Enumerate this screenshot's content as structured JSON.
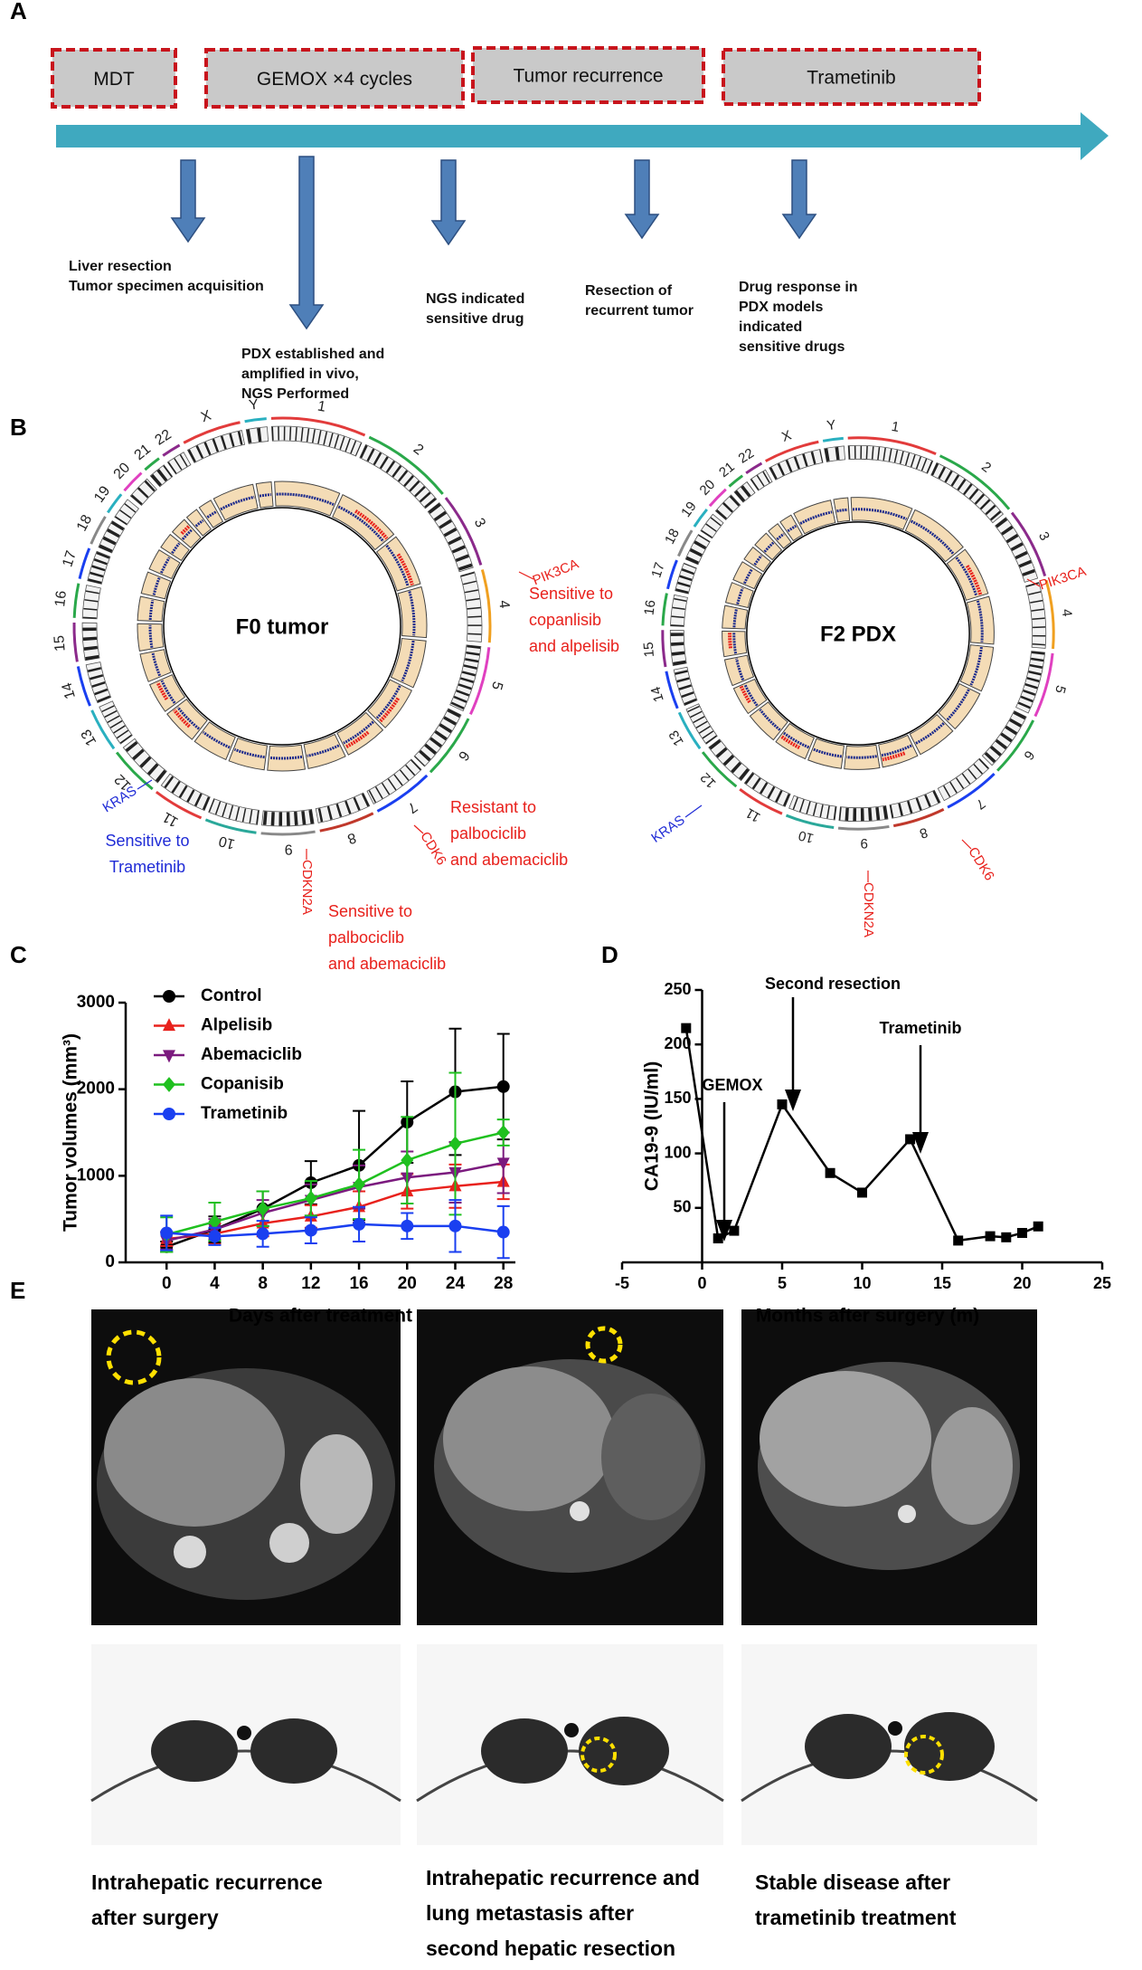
{
  "panel_labels": [
    "A",
    "B",
    "C",
    "D",
    "E"
  ],
  "timeline": {
    "phases": [
      "MDT",
      "GEMOX ×4 cycles",
      "Tumor recurrence",
      "Trametinib"
    ],
    "events": [
      [
        "Liver resection",
        "Tumor specimen acquisition"
      ],
      [
        "PDX established and",
        "amplified in vivo,",
        "NGS Performed"
      ],
      [
        "NGS indicated",
        "sensitive drug"
      ],
      [
        "Resection of",
        "recurrent tumor"
      ],
      [
        "Drug response in",
        "PDX models",
        "indicated",
        "sensitive drugs"
      ]
    ]
  },
  "chromosomes": [
    "1",
    "2",
    "3",
    "4",
    "5",
    "6",
    "7",
    "8",
    "9",
    "10",
    "11",
    "12",
    "13",
    "14",
    "15",
    "16",
    "17",
    "18",
    "19",
    "20",
    "21",
    "22",
    "X",
    "Y"
  ],
  "circos": [
    {
      "title": "F0 tumor",
      "annotations": [
        {
          "gene": "PIK3CA",
          "color": "#e8211c",
          "note": [
            "Sensitive to",
            "copanlisib",
            "and alpelisib"
          ]
        },
        {
          "gene": "KRAS",
          "color": "#1f2bd6",
          "note": [
            "Sensitive to",
            "Trametinib"
          ]
        },
        {
          "gene": "CDK6",
          "color": "#e8211c",
          "note": [
            "Resistant to",
            "palbociclib",
            "and abemaciclib"
          ]
        },
        {
          "gene": "CDKN2A",
          "color": "#e8211c",
          "note": [
            "Sensitive to",
            "palbociclib",
            "and abemaciclib"
          ]
        }
      ]
    },
    {
      "title": "F2 PDX",
      "annotations": [
        {
          "gene": "PIK3CA",
          "color": "#e8211c"
        },
        {
          "gene": "KRAS",
          "color": "#1f2bd6"
        },
        {
          "gene": "CDK6",
          "color": "#e8211c"
        },
        {
          "gene": "CDKN2A",
          "color": "#e8211c"
        }
      ]
    }
  ],
  "chart_data": [
    {
      "type": "line",
      "xlabel": "Days after treatment",
      "ylabel": "Tumor volumes (mm³)",
      "x": [
        0,
        4,
        8,
        12,
        16,
        20,
        24,
        28
      ],
      "xlim": [
        -3.4,
        29
      ],
      "xticks": [
        0,
        4,
        8,
        12,
        16,
        20,
        24,
        28
      ],
      "ylim": [
        0,
        3000
      ],
      "yticks": [
        0,
        1000,
        2000,
        3000
      ],
      "legend": "upper left",
      "series": [
        {
          "name": "Control",
          "color": "#000000",
          "marker": "circle",
          "values": [
            180,
            380,
            620,
            920,
            1120,
            1620,
            1970,
            2030
          ],
          "errors": [
            60,
            150,
            200,
            250,
            630,
            470,
            730,
            610
          ]
        },
        {
          "name": "Alpelisib",
          "color": "#e8211c",
          "marker": "triangle-up",
          "values": [
            270,
            330,
            450,
            530,
            640,
            820,
            880,
            930
          ],
          "errors": [
            80,
            120,
            150,
            130,
            180,
            200,
            250,
            200
          ]
        },
        {
          "name": "Abemaciclib",
          "color": "#7b1a7e",
          "marker": "triangle-down",
          "values": [
            250,
            380,
            570,
            720,
            870,
            980,
            1040,
            1150
          ],
          "errors": [
            100,
            120,
            150,
            180,
            250,
            300,
            350,
            350
          ]
        },
        {
          "name": "Copanisib",
          "color": "#1fc01f",
          "marker": "diamond",
          "values": [
            320,
            470,
            620,
            740,
            900,
            1180,
            1370,
            1500
          ],
          "errors": [
            200,
            220,
            200,
            200,
            400,
            500,
            820,
            150
          ]
        },
        {
          "name": "Trametinib",
          "color": "#1a3ff0",
          "marker": "circle",
          "values": [
            340,
            300,
            330,
            370,
            440,
            420,
            420,
            350
          ],
          "errors": [
            200,
            100,
            150,
            150,
            200,
            150,
            300,
            300
          ]
        }
      ]
    },
    {
      "type": "line",
      "xlabel": "Months after surgery (m)",
      "ylabel": "CA19-9 (IU/ml)",
      "x": [
        -1,
        1,
        2,
        5,
        8,
        10,
        13,
        16,
        18,
        19,
        20,
        21
      ],
      "values": [
        215,
        22,
        29,
        145,
        82,
        64,
        113,
        20,
        24,
        23,
        27,
        33
      ],
      "color": "#000000",
      "marker": "square",
      "xlim": [
        -5,
        25
      ],
      "xticks": [
        -5,
        0,
        5,
        10,
        15,
        20,
        25
      ],
      "ylim": [
        0,
        250
      ],
      "yticks": [
        50,
        100,
        150,
        200,
        250
      ],
      "annotations": [
        "GEMOX",
        "Second resection",
        "Trametinib"
      ]
    }
  ],
  "imaging": {
    "captions": [
      [
        "Intrahepatic recurrence",
        "after surgery"
      ],
      [
        "Intrahepatic recurrence and",
        "lung metastasis after",
        "second hepatic resection"
      ],
      [
        "Stable disease after",
        "trametinib treatment"
      ]
    ]
  }
}
